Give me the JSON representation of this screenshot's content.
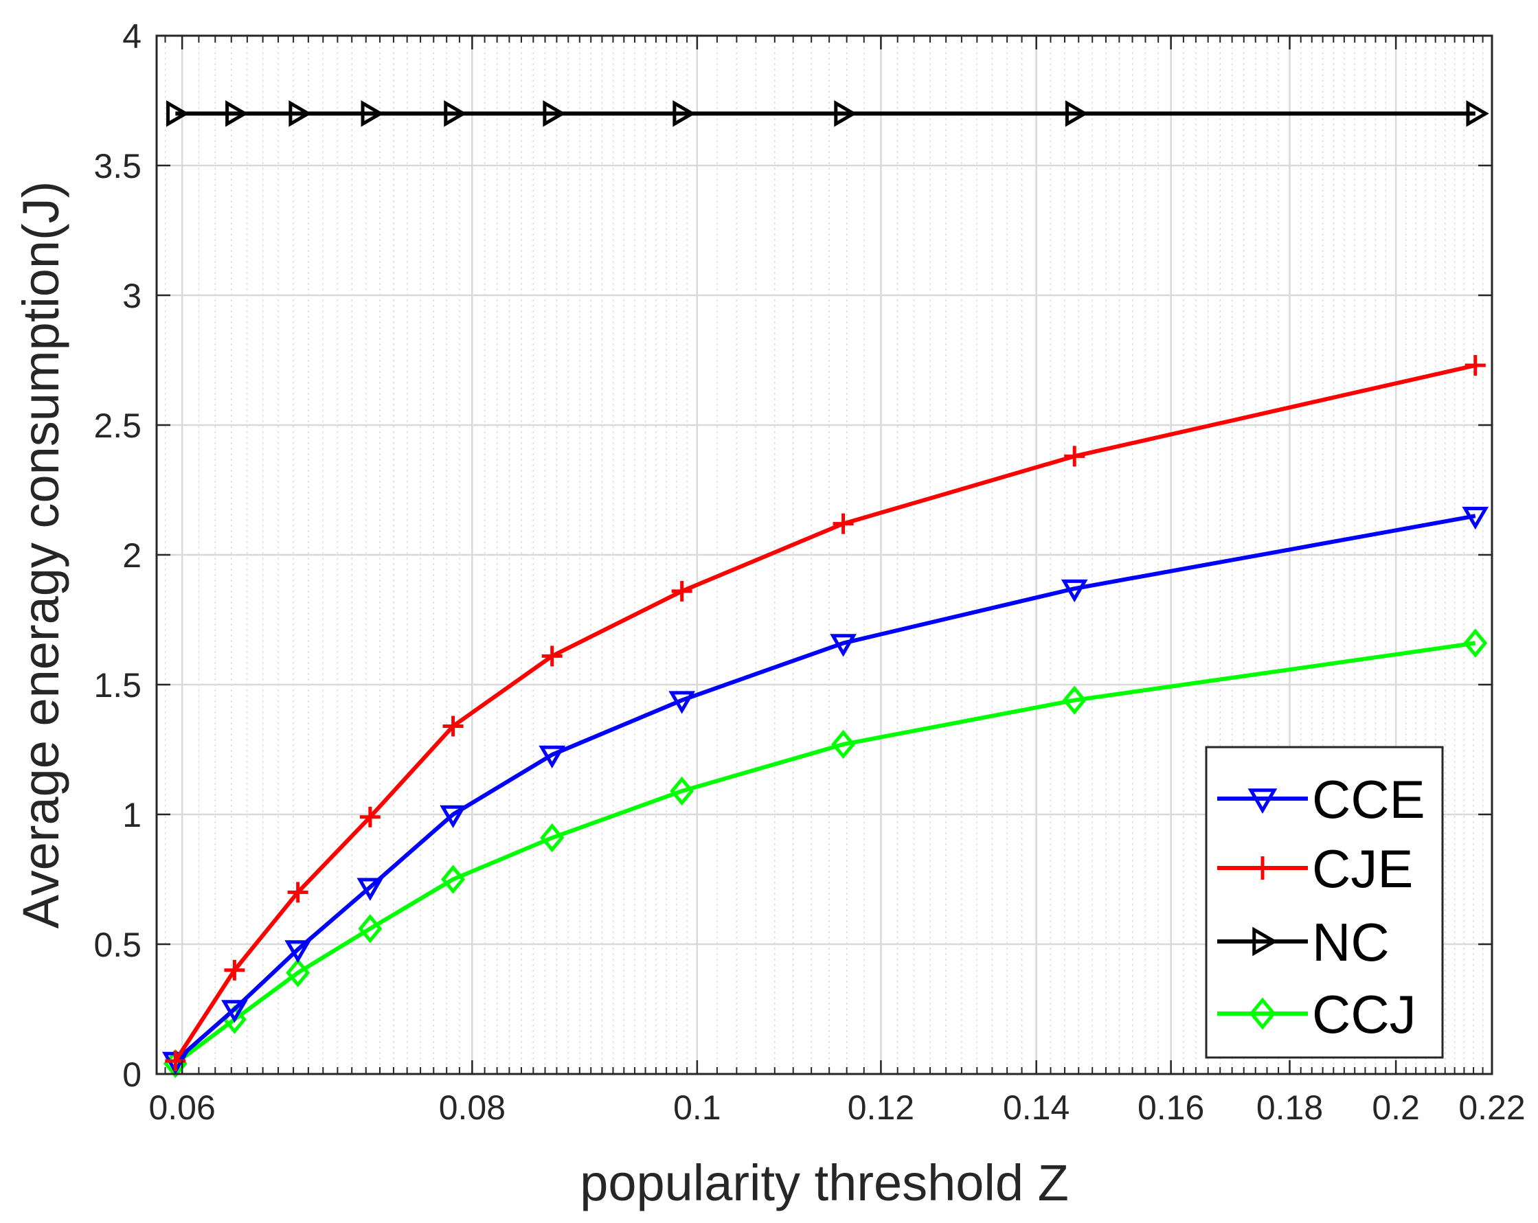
{
  "chart_data": {
    "type": "line",
    "x_scale": "log",
    "title": "",
    "xlabel": "popularity threshold Z",
    "ylabel": "Average eneragy consumption(J)",
    "xlim": [
      0.0585,
      0.22
    ],
    "ylim": [
      0,
      4
    ],
    "grid": true,
    "legend_position": "bottom-right",
    "x": [
      0.0596,
      0.0632,
      0.0673,
      0.0723,
      0.0785,
      0.0866,
      0.0985,
      0.1156,
      0.1454,
      0.2164
    ],
    "x_ticks": [
      0.06,
      0.08,
      0.1,
      0.12,
      0.14,
      0.16,
      0.18,
      0.2,
      0.22
    ],
    "x_tick_labels": [
      "0.06",
      "0.08",
      "0.1",
      "0.12",
      "0.14",
      "0.16",
      "0.18",
      "0.2",
      "0.22"
    ],
    "y_ticks": [
      0,
      0.5,
      1,
      1.5,
      2,
      2.5,
      3,
      3.5,
      4
    ],
    "y_tick_labels": [
      "0",
      "0.5",
      "1",
      "1.5",
      "2",
      "2.5",
      "3",
      "3.5",
      "4"
    ],
    "series": [
      {
        "name": "CCE",
        "color": "#0000ff",
        "marker": "triangle-down",
        "values": [
          0.05,
          0.25,
          0.48,
          0.72,
          1.0,
          1.23,
          1.44,
          1.66,
          1.87,
          2.15
        ]
      },
      {
        "name": "CJE",
        "color": "#ff0000",
        "marker": "plus",
        "values": [
          0.05,
          0.4,
          0.7,
          0.99,
          1.34,
          1.61,
          1.86,
          2.12,
          2.38,
          2.73
        ]
      },
      {
        "name": "NC",
        "color": "#000000",
        "marker": "triangle-right",
        "values": [
          3.7,
          3.7,
          3.7,
          3.7,
          3.7,
          3.7,
          3.7,
          3.7,
          3.7,
          3.7
        ]
      },
      {
        "name": "CCJ",
        "color": "#00ff00",
        "marker": "diamond",
        "values": [
          0.04,
          0.21,
          0.39,
          0.56,
          0.75,
          0.91,
          1.09,
          1.27,
          1.44,
          1.66
        ]
      }
    ]
  }
}
